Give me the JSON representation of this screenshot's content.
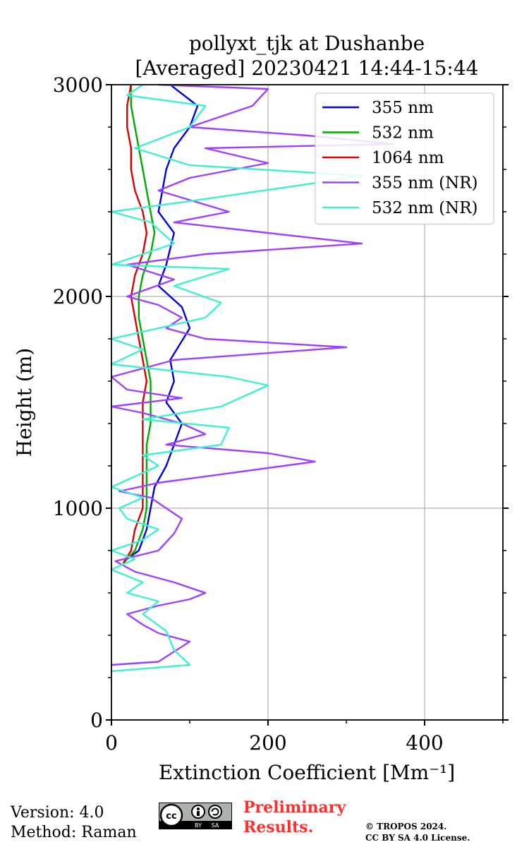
{
  "chart_data": {
    "type": "line",
    "title": [
      "pollyxt_tjk at Dushanbe",
      "[Averaged] 20230421 14:44-15:44"
    ],
    "xlabel": "Extinction Coefficient [Mm⁻¹]",
    "ylabel": "Height (m)",
    "xlim": [
      0,
      500
    ],
    "ylim": [
      0,
      3000
    ],
    "xticks": [
      0,
      200,
      400
    ],
    "yticks": [
      0,
      1000,
      2000,
      3000
    ],
    "grid": true,
    "legend_position": "top-right",
    "series": [
      {
        "name": "355 nm",
        "color": "#0000e0",
        "points": [
          [
            20,
            760
          ],
          [
            35,
            800
          ],
          [
            45,
            900
          ],
          [
            50,
            1000
          ],
          [
            55,
            1100
          ],
          [
            70,
            1200
          ],
          [
            80,
            1300
          ],
          [
            90,
            1400
          ],
          [
            70,
            1500
          ],
          [
            80,
            1600
          ],
          [
            75,
            1700
          ],
          [
            100,
            1850
          ],
          [
            90,
            1950
          ],
          [
            60,
            2050
          ],
          [
            70,
            2150
          ],
          [
            80,
            2300
          ],
          [
            60,
            2400
          ],
          [
            65,
            2500
          ],
          [
            70,
            2600
          ],
          [
            80,
            2700
          ],
          [
            100,
            2800
          ],
          [
            110,
            2900
          ],
          [
            75,
            3000
          ]
        ]
      },
      {
        "name": "532 nm",
        "color": "#00aa00",
        "points": [
          [
            15,
            740
          ],
          [
            30,
            800
          ],
          [
            40,
            900
          ],
          [
            45,
            1000
          ],
          [
            45,
            1100
          ],
          [
            45,
            1200
          ],
          [
            45,
            1300
          ],
          [
            50,
            1400
          ],
          [
            50,
            1500
          ],
          [
            50,
            1600
          ],
          [
            45,
            1700
          ],
          [
            40,
            1800
          ],
          [
            35,
            1900
          ],
          [
            35,
            2000
          ],
          [
            40,
            2100
          ],
          [
            50,
            2200
          ],
          [
            55,
            2300
          ],
          [
            50,
            2400
          ],
          [
            45,
            2500
          ],
          [
            40,
            2600
          ],
          [
            35,
            2700
          ],
          [
            30,
            2800
          ],
          [
            25,
            2900
          ],
          [
            25,
            3000
          ]
        ]
      },
      {
        "name": "1064 nm",
        "color": "#dd0000",
        "points": [
          [
            15,
            740
          ],
          [
            25,
            800
          ],
          [
            30,
            900
          ],
          [
            40,
            1000
          ],
          [
            40,
            1100
          ],
          [
            40,
            1200
          ],
          [
            40,
            1300
          ],
          [
            40,
            1400
          ],
          [
            40,
            1500
          ],
          [
            45,
            1600
          ],
          [
            40,
            1700
          ],
          [
            35,
            1800
          ],
          [
            30,
            1900
          ],
          [
            25,
            2000
          ],
          [
            30,
            2100
          ],
          [
            40,
            2200
          ],
          [
            45,
            2300
          ],
          [
            40,
            2400
          ],
          [
            30,
            2500
          ],
          [
            25,
            2600
          ],
          [
            25,
            2700
          ],
          [
            20,
            2800
          ],
          [
            20,
            2900
          ],
          [
            25,
            3000
          ]
        ]
      },
      {
        "name": "355 nm (NR)",
        "color": "#a040ff",
        "points": [
          [
            0,
            260
          ],
          [
            60,
            275
          ],
          [
            100,
            370
          ],
          [
            60,
            410
          ],
          [
            40,
            450
          ],
          [
            20,
            500
          ],
          [
            60,
            540
          ],
          [
            100,
            570
          ],
          [
            120,
            600
          ],
          [
            80,
            650
          ],
          [
            30,
            700
          ],
          [
            5,
            750
          ],
          [
            60,
            800
          ],
          [
            80,
            880
          ],
          [
            90,
            950
          ],
          [
            70,
            1000
          ],
          [
            50,
            1050
          ],
          [
            10,
            1080
          ],
          [
            60,
            1120
          ],
          [
            260,
            1220
          ],
          [
            200,
            1260
          ],
          [
            70,
            1300
          ],
          [
            120,
            1350
          ],
          [
            90,
            1400
          ],
          [
            40,
            1450
          ],
          [
            0,
            1480
          ],
          [
            90,
            1520
          ],
          [
            20,
            1560
          ],
          [
            0,
            1620
          ],
          [
            80,
            1700
          ],
          [
            300,
            1760
          ],
          [
            120,
            1800
          ],
          [
            70,
            1850
          ],
          [
            90,
            1900
          ],
          [
            60,
            1960
          ],
          [
            20,
            2000
          ],
          [
            80,
            2080
          ],
          [
            20,
            2150
          ],
          [
            120,
            2200
          ],
          [
            320,
            2250
          ],
          [
            200,
            2300
          ],
          [
            80,
            2350
          ],
          [
            150,
            2400
          ],
          [
            60,
            2500
          ],
          [
            100,
            2560
          ],
          [
            200,
            2630
          ],
          [
            120,
            2700
          ],
          [
            360,
            2720
          ],
          [
            250,
            2760
          ],
          [
            100,
            2800
          ],
          [
            180,
            2900
          ],
          [
            200,
            2980
          ],
          [
            60,
            3000
          ]
        ]
      },
      {
        "name": "532 nm (NR)",
        "color": "#40f0d0",
        "points": [
          [
            0,
            230
          ],
          [
            100,
            260
          ],
          [
            80,
            330
          ],
          [
            70,
            420
          ],
          [
            40,
            500
          ],
          [
            60,
            560
          ],
          [
            20,
            600
          ],
          [
            40,
            650
          ],
          [
            0,
            710
          ],
          [
            30,
            760
          ],
          [
            0,
            800
          ],
          [
            40,
            850
          ],
          [
            60,
            900
          ],
          [
            20,
            950
          ],
          [
            10,
            1000
          ],
          [
            40,
            1050
          ],
          [
            0,
            1100
          ],
          [
            30,
            1150
          ],
          [
            60,
            1200
          ],
          [
            40,
            1250
          ],
          [
            140,
            1300
          ],
          [
            150,
            1380
          ],
          [
            40,
            1420
          ],
          [
            140,
            1480
          ],
          [
            200,
            1580
          ],
          [
            150,
            1620
          ],
          [
            0,
            1680
          ],
          [
            40,
            1750
          ],
          [
            0,
            1800
          ],
          [
            120,
            1900
          ],
          [
            140,
            1970
          ],
          [
            80,
            2050
          ],
          [
            150,
            2130
          ],
          [
            0,
            2150
          ],
          [
            80,
            2250
          ],
          [
            50,
            2350
          ],
          [
            0,
            2400
          ],
          [
            100,
            2450
          ],
          [
            250,
            2530
          ],
          [
            320,
            2570
          ],
          [
            100,
            2620
          ],
          [
            30,
            2700
          ],
          [
            100,
            2800
          ],
          [
            120,
            2900
          ],
          [
            20,
            2950
          ],
          [
            40,
            3000
          ]
        ]
      }
    ]
  },
  "footer": {
    "version": "Version: 4.0",
    "method": "Method: Raman",
    "preliminary_line1": "Preliminary",
    "preliminary_line2": "Results.",
    "copyright_line1": "© TROPOS 2024.",
    "copyright_line2": "CC BY SA 4.0 License."
  },
  "license_badge": {
    "cc": "cc",
    "by": "BY",
    "sa": "SA"
  }
}
